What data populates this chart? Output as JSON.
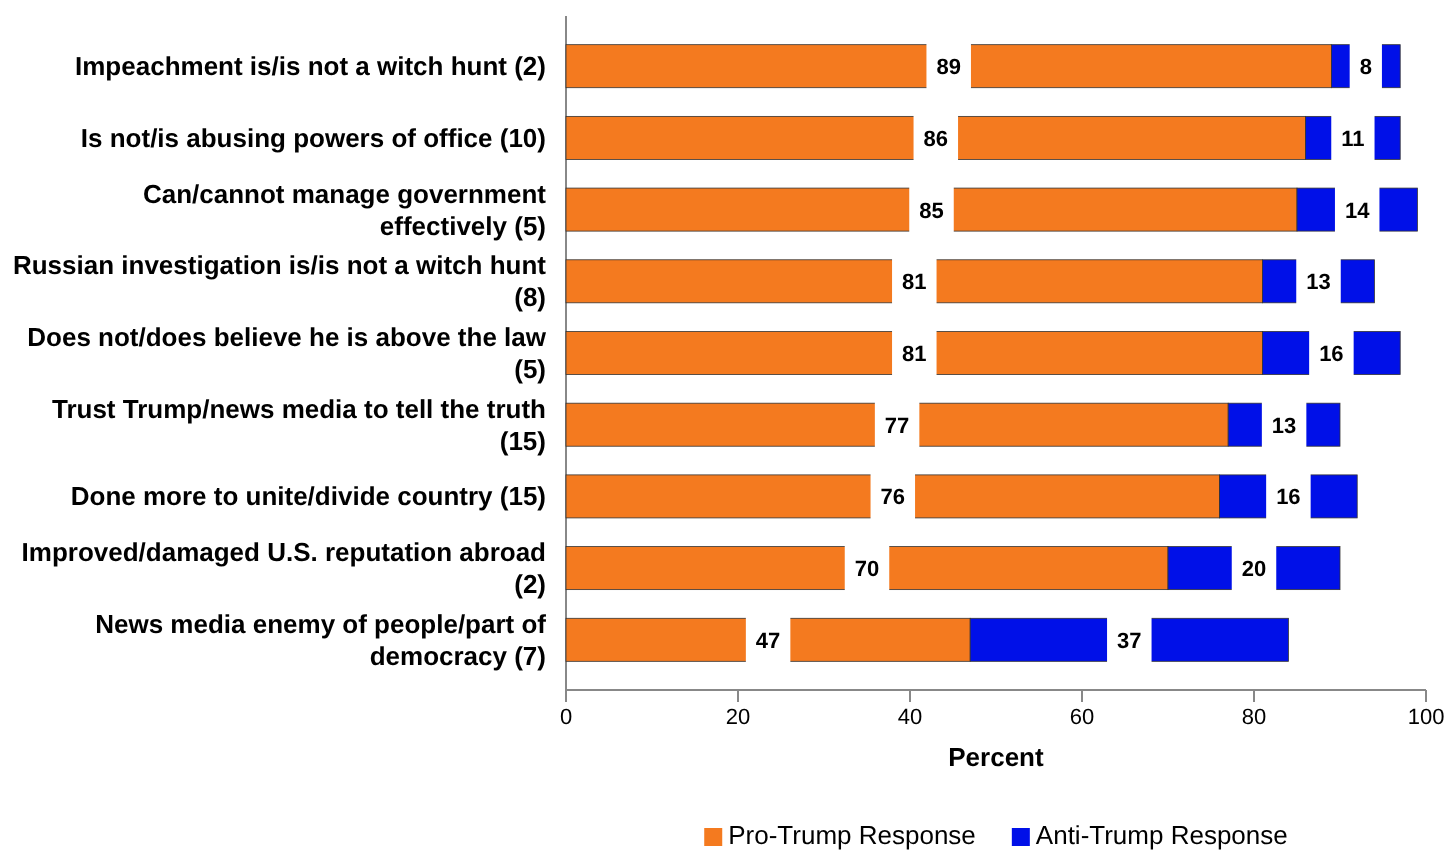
{
  "chart_data": {
    "type": "bar",
    "orientation": "horizontal",
    "stacked": true,
    "categories": [
      "Impeachment is/is not a witch hunt (2)",
      "Is not/is abusing powers of office (10)",
      "Can/cannot manage government effectively (5)",
      "Russian investigation is/is not a witch hunt (8)",
      "Does not/does believe he is above the law (5)",
      "Trust Trump/news media to tell the truth (15)",
      "Done more to unite/divide country (15)",
      "Improved/damaged U.S. reputation abroad (2)",
      "News media enemy of people/part of democracy (7)"
    ],
    "series": [
      {
        "name": "Pro-Trump Response",
        "color": "#f47a1f",
        "values": [
          89,
          86,
          85,
          81,
          81,
          77,
          76,
          70,
          47
        ]
      },
      {
        "name": "Anti-Trump Response",
        "color": "#0010e8",
        "values": [
          8,
          11,
          14,
          13,
          16,
          13,
          16,
          20,
          37
        ]
      }
    ],
    "xlabel": "Percent",
    "xlim": [
      0,
      100
    ],
    "xticks": [
      0,
      20,
      40,
      60,
      80,
      100
    ],
    "data_labels": true,
    "legend": "bottom",
    "grid": false
  }
}
